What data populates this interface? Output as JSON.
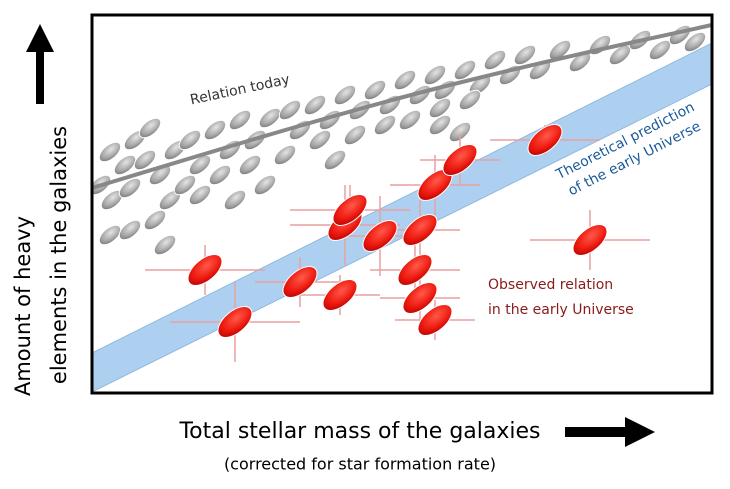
{
  "y_axis": {
    "label_lines": [
      "Amount of heavy",
      "elements in the galaxies"
    ]
  },
  "x_axis": {
    "label": "Total stellar mass of the galaxies",
    "sublabel": "(corrected for star formation rate)"
  },
  "annotations": {
    "today": "Relation today",
    "prediction": [
      "Theoretical prediction",
      "of the early Universe"
    ],
    "observed": [
      "Observed relation",
      "in the early Universe"
    ]
  }
}
